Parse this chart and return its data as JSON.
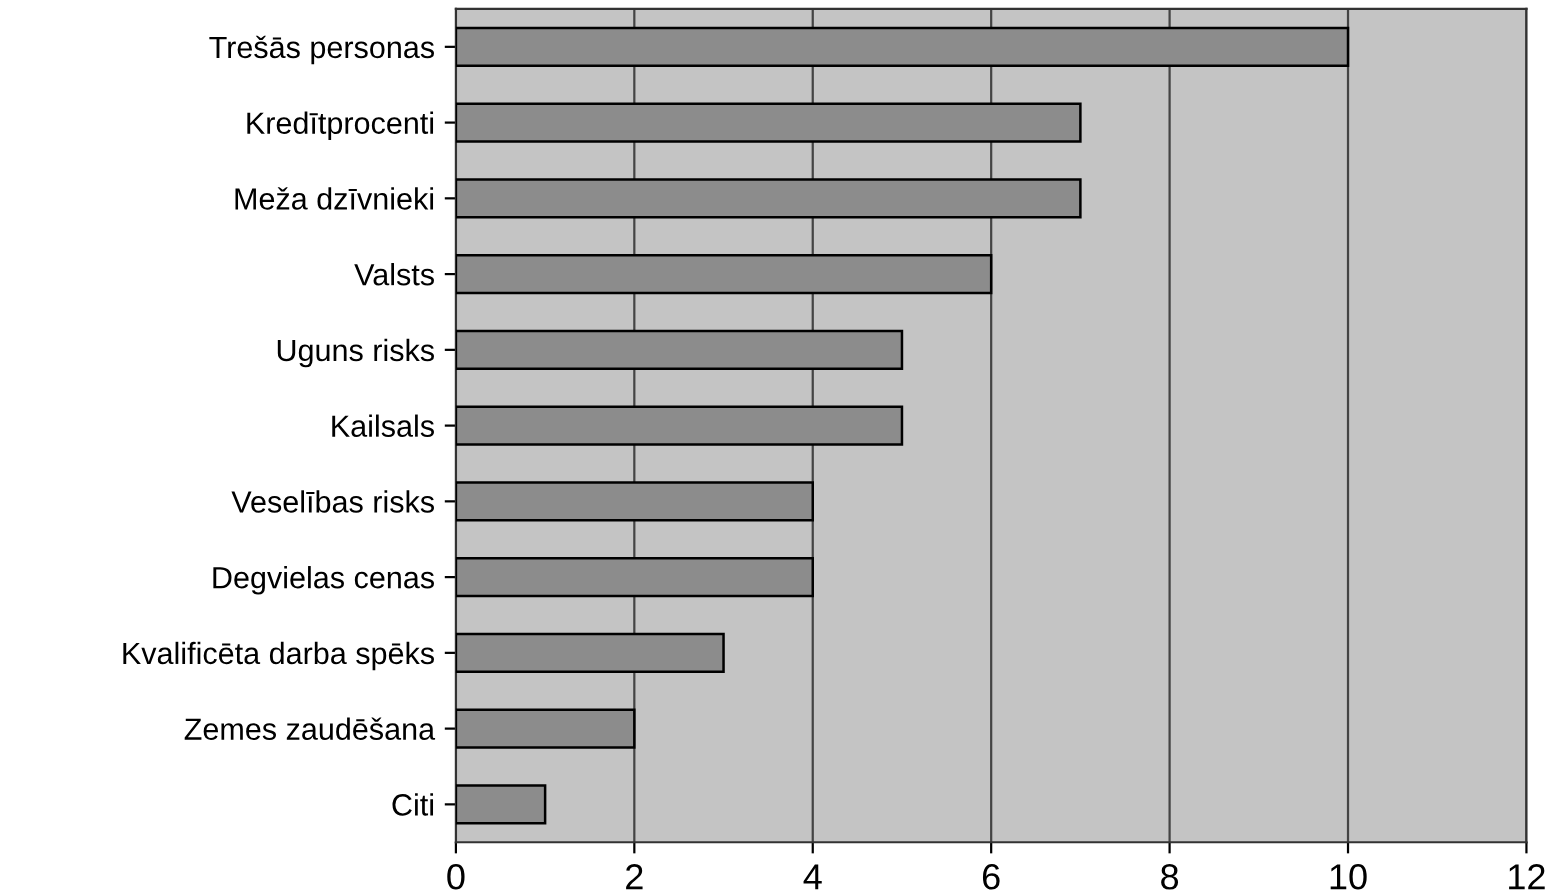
{
  "chart_data": {
    "type": "bar",
    "orientation": "horizontal",
    "categories": [
      "Trešās personas",
      "Kredītprocenti",
      "Meža dzīvnieki",
      "Valsts",
      "Uguns risks",
      "Kailsals",
      "Veselības risks",
      "Degvielas cenas",
      "Kvalificēta darba spēks",
      "Zemes zaudēšana",
      "Citi"
    ],
    "values": [
      10,
      7,
      7,
      6,
      5,
      5,
      4,
      4,
      3,
      2,
      1
    ],
    "color": "#8c8c8c",
    "xlim": [
      0,
      12
    ],
    "xticks": [
      0,
      2,
      4,
      6,
      8,
      10,
      12
    ],
    "grid": "x"
  }
}
